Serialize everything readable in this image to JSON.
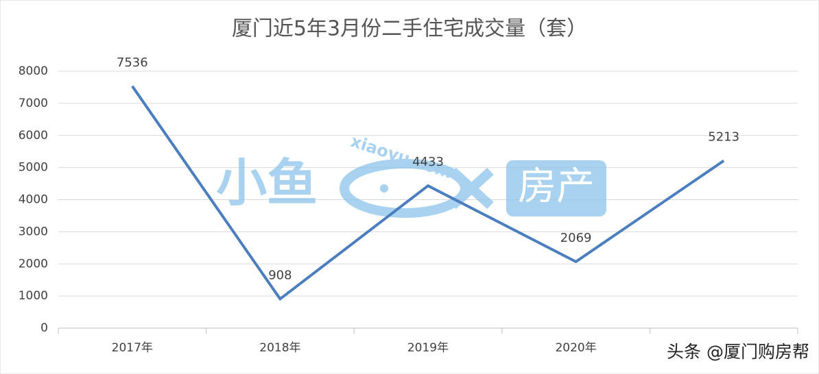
{
  "chart_data": {
    "type": "line",
    "title": "厦门近5年3月份二手住宅成交量（套）",
    "categories": [
      "2017年",
      "2018年",
      "2019年",
      "2020年",
      null
    ],
    "values": [
      7536,
      908,
      4433,
      2069,
      5213
    ],
    "color": "#4a7ebf",
    "ylim": [
      0,
      8000
    ],
    "yticks": [
      0,
      1000,
      2000,
      3000,
      4000,
      5000,
      6000,
      7000,
      8000
    ],
    "grid": true,
    "annotations": [
      "小鱼",
      "xiaoyu.com",
      "房产",
      "头条 @厦门购房帮"
    ]
  }
}
